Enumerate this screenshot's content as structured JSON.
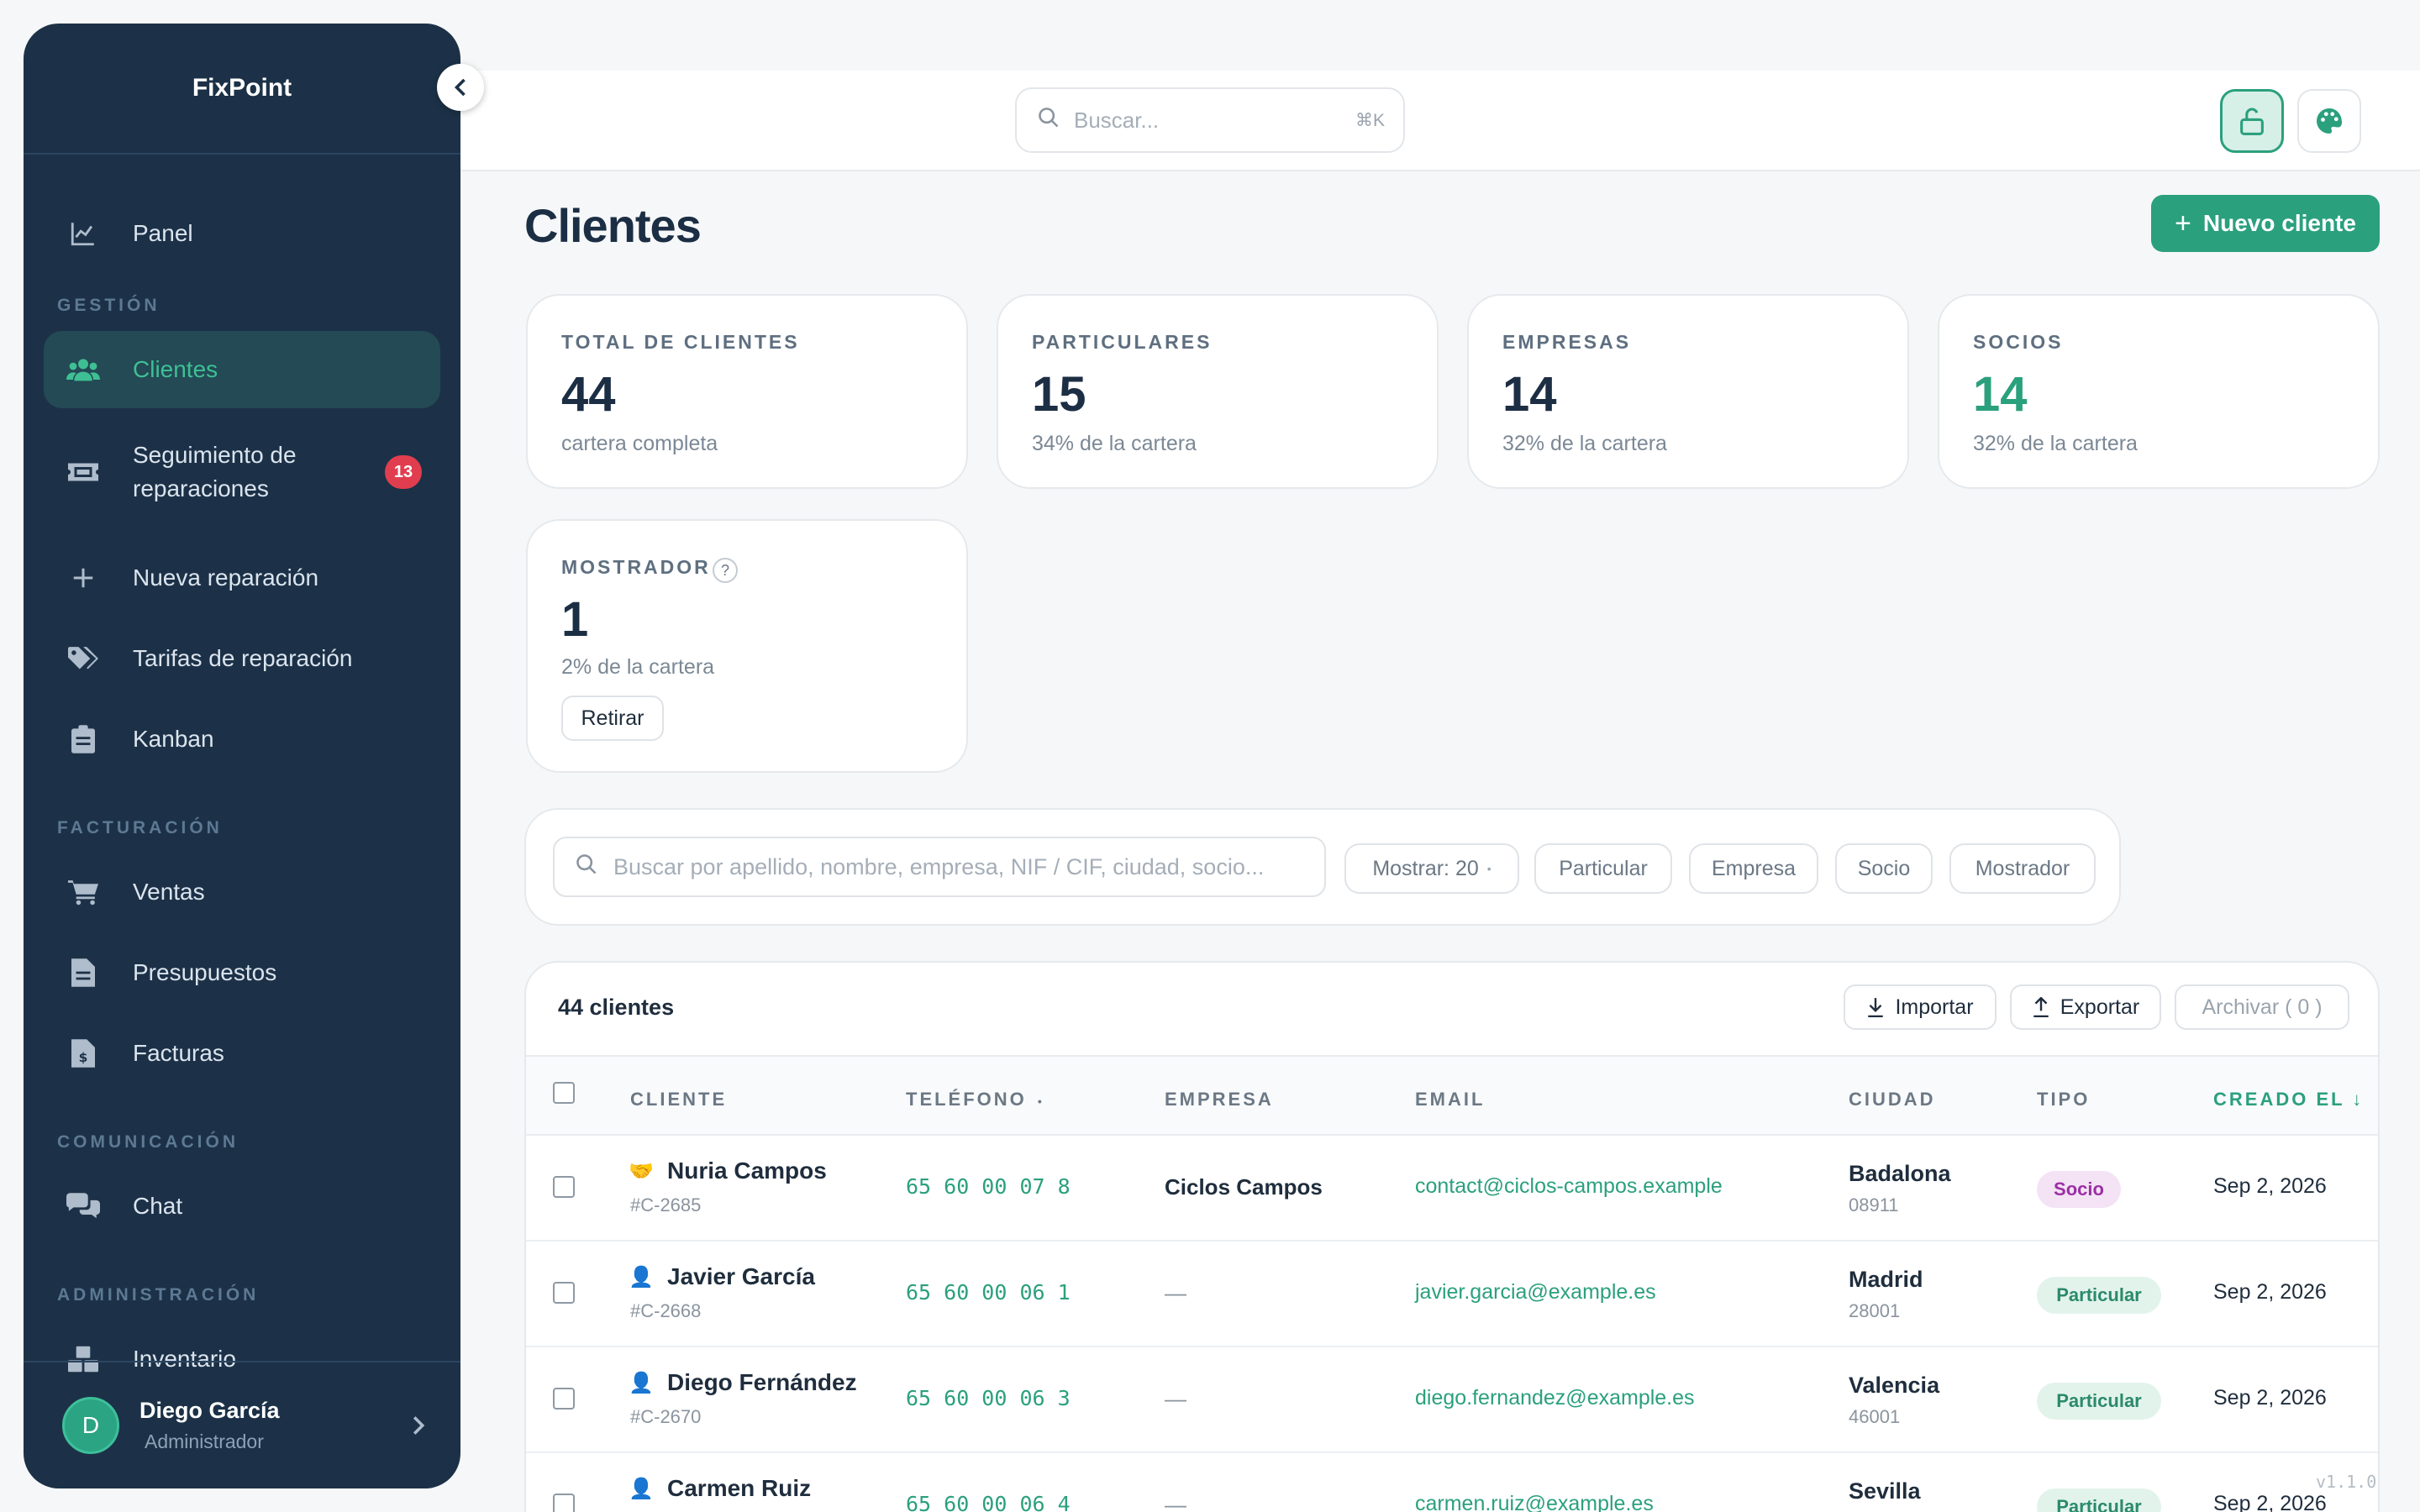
{
  "app": {
    "name": "FixPoint",
    "version": "v1.1.0"
  },
  "sidebar": {
    "panel": "Panel",
    "sections": {
      "gestion": "GESTIÓN",
      "facturacion": "FACTURACIÓN",
      "comunicacion": "COMUNICACIÓN",
      "administracion": "ADMINISTRACIÓN"
    },
    "items": {
      "clientes": "Clientes",
      "seguimiento_1": "Seguimiento de",
      "seguimiento_2": "reparaciones",
      "seguimiento_badge": "13",
      "nueva": "Nueva reparación",
      "tarifas": "Tarifas de reparación",
      "kanban": "Kanban",
      "ventas": "Ventas",
      "presupuestos": "Presupuestos",
      "facturas": "Facturas",
      "chat": "Chat",
      "inventario": "Inventario"
    },
    "user": {
      "initial": "D",
      "name": "Diego García",
      "role": "Administrador"
    }
  },
  "topbar": {
    "search_placeholder": "Buscar...",
    "shortcut": "⌘K"
  },
  "page": {
    "title": "Clientes",
    "new_button": "Nuevo cliente"
  },
  "stats": [
    {
      "label": "TOTAL DE CLIENTES",
      "value": "44",
      "sub": "cartera completa"
    },
    {
      "label": "PARTICULARES",
      "value": "15",
      "sub": "34% de la cartera"
    },
    {
      "label": "EMPRESAS",
      "value": "14",
      "sub": "32% de la cartera"
    },
    {
      "label": "SOCIOS",
      "value": "14",
      "sub": "32% de la cartera"
    },
    {
      "label": "MOSTRADOR",
      "value": "1",
      "sub": "2% de la cartera",
      "help": "?",
      "action": "Retirar"
    }
  ],
  "filters": {
    "search_placeholder": "Buscar por apellido, nombre, empresa, NIF / CIF, ciudad, socio...",
    "show": "Mostrar: 20",
    "chips": [
      "Particular",
      "Empresa",
      "Socio",
      "Mostrador"
    ]
  },
  "table": {
    "count_label": "44 clientes",
    "import": "Importar",
    "export": "Exportar",
    "archive": "Archivar ( 0 )",
    "headers": {
      "cliente": "CLIENTE",
      "telefono": "TELÉFONO",
      "empresa": "EMPRESA",
      "email": "EMAIL",
      "ciudad": "CIUDAD",
      "tipo": "TIPO",
      "creado": "CREADO EL ↓"
    },
    "rows": [
      {
        "icon": "🤝",
        "name": "Nuria Campos",
        "id": "#C-2685",
        "phone": "65 60 00 07 8",
        "company": "Ciclos Campos",
        "email": "contact@ciclos-campos.example",
        "city": "Badalona",
        "zip": "08911",
        "type": "Socio",
        "created": "Sep 2, 2026"
      },
      {
        "icon": "👤",
        "name": "Javier García",
        "id": "#C-2668",
        "phone": "65 60 00 06 1",
        "company": "—",
        "email": "javier.garcia@example.es",
        "city": "Madrid",
        "zip": "28001",
        "type": "Particular",
        "created": "Sep 2, 2026"
      },
      {
        "icon": "👤",
        "name": "Diego Fernández",
        "id": "#C-2670",
        "phone": "65 60 00 06 3",
        "company": "—",
        "email": "diego.fernandez@example.es",
        "city": "Valencia",
        "zip": "46001",
        "type": "Particular",
        "created": "Sep 2, 2026"
      },
      {
        "icon": "👤",
        "name": "Carmen Ruiz",
        "id": "",
        "phone": "65 60 00 06 4",
        "company": "—",
        "email": "carmen.ruiz@example.es",
        "city": "Sevilla",
        "zip": "",
        "type": "Particular",
        "created": "Sep 2, 2026"
      }
    ]
  }
}
